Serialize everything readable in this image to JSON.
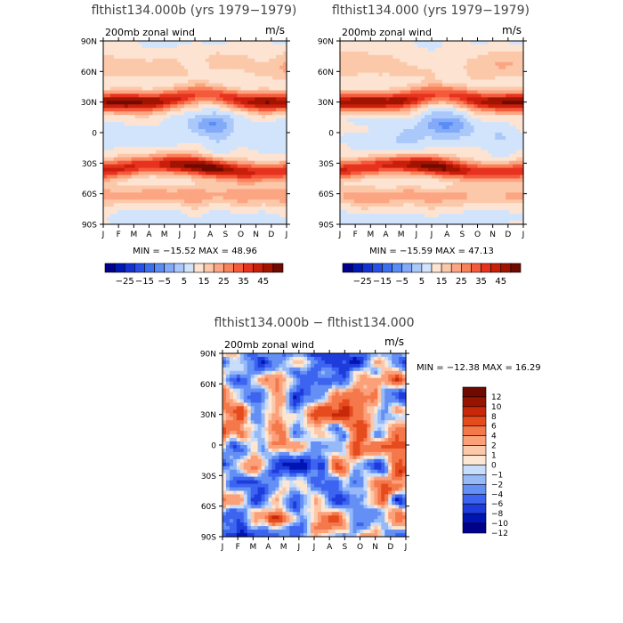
{
  "figure_title": "flthist134.000b (yrs 1979-1979) flthist134.000 (yrs 1979-1979)",
  "panels": [
    {
      "id": "a",
      "title": "flthist134.000b (yrs 1979−1979)",
      "variable": "200mb zonal wind",
      "units": "m/s",
      "stats": "MIN = −15.52  MAX =  48.96"
    },
    {
      "id": "b",
      "title": "flthist134.000 (yrs 1979−1979)",
      "variable": "200mb zonal wind",
      "units": "m/s",
      "stats": "MIN = −15.59  MAX =  47.13"
    },
    {
      "id": "diff",
      "title": "flthist134.000b − flthist134.000",
      "variable": "200mb zonal wind",
      "units": "m/s",
      "stats": "MIN = −12.38  MAX =  16.29"
    }
  ],
  "chart_data": [
    {
      "type": "heatmap",
      "title": "flthist134.000b (yrs 1979−1979)",
      "xlabel": "",
      "ylabel": "",
      "x_ticks": [
        "J",
        "F",
        "M",
        "A",
        "M",
        "J",
        "J",
        "A",
        "S",
        "O",
        "N",
        "D",
        "J"
      ],
      "y_ticks": [
        "90N",
        "60N",
        "30N",
        "0",
        "30S",
        "60S",
        "90S"
      ],
      "ylim": [
        -90,
        90
      ],
      "min": -15.52,
      "max": 48.96,
      "colorbar": {
        "orientation": "horizontal",
        "levels": [
          -30,
          -25,
          -20,
          -15,
          -10,
          -5,
          0,
          5,
          10,
          15,
          20,
          25,
          30,
          35,
          40,
          45,
          50
        ],
        "labels": [
          "-25",
          "-15",
          "-5",
          "5",
          "15",
          "25",
          "35",
          "45"
        ]
      }
    },
    {
      "type": "heatmap",
      "title": "flthist134.000 (yrs 1979−1979)",
      "xlabel": "",
      "ylabel": "",
      "x_ticks": [
        "J",
        "F",
        "M",
        "A",
        "M",
        "J",
        "J",
        "A",
        "S",
        "O",
        "N",
        "D",
        "J"
      ],
      "y_ticks": [
        "90N",
        "60N",
        "30N",
        "0",
        "30S",
        "60S",
        "90S"
      ],
      "ylim": [
        -90,
        90
      ],
      "min": -15.59,
      "max": 47.13,
      "colorbar": {
        "orientation": "horizontal",
        "levels": [
          -30,
          -25,
          -20,
          -15,
          -10,
          -5,
          0,
          5,
          10,
          15,
          20,
          25,
          30,
          35,
          40,
          45,
          50
        ],
        "labels": [
          "-25",
          "-15",
          "-5",
          "5",
          "15",
          "25",
          "35",
          "45"
        ]
      }
    },
    {
      "type": "heatmap",
      "title": "flthist134.000b − flthist134.000",
      "xlabel": "",
      "ylabel": "",
      "x_ticks": [
        "J",
        "F",
        "M",
        "A",
        "M",
        "J",
        "J",
        "A",
        "S",
        "O",
        "N",
        "D",
        "J"
      ],
      "y_ticks": [
        "90N",
        "60N",
        "30N",
        "0",
        "30S",
        "60S",
        "90S"
      ],
      "ylim": [
        -90,
        90
      ],
      "min": -12.38,
      "max": 16.29,
      "colorbar": {
        "orientation": "vertical",
        "labels": [
          "12",
          "10",
          "8",
          "6",
          "4",
          "2",
          "1",
          "0",
          "−1",
          "−2",
          "−4",
          "−6",
          "−8",
          "−10",
          "−12"
        ]
      }
    }
  ],
  "colors": {
    "blues": [
      "#00008c",
      "#0018b4",
      "#1432d2",
      "#2850e6",
      "#3c6ef0",
      "#5a8cf5",
      "#82aaf8",
      "#aac8fa",
      "#d2e4fc"
    ],
    "reds": [
      "#fde4d2",
      "#fcc8aa",
      "#fca582",
      "#f9825a",
      "#f55a3c",
      "#e6321e",
      "#c81e0a",
      "#a01400",
      "#6e0a00"
    ],
    "diff_blues": [
      "#00008c",
      "#0014b4",
      "#1e3cdc",
      "#3c64f0",
      "#6490f5",
      "#96b9f8",
      "#c8dcfc"
    ],
    "diff_reds": [
      "#fde6d2",
      "#fcc8aa",
      "#fca07a",
      "#f5784b",
      "#e64b1e",
      "#c8280a",
      "#961400",
      "#6e0a00"
    ]
  }
}
